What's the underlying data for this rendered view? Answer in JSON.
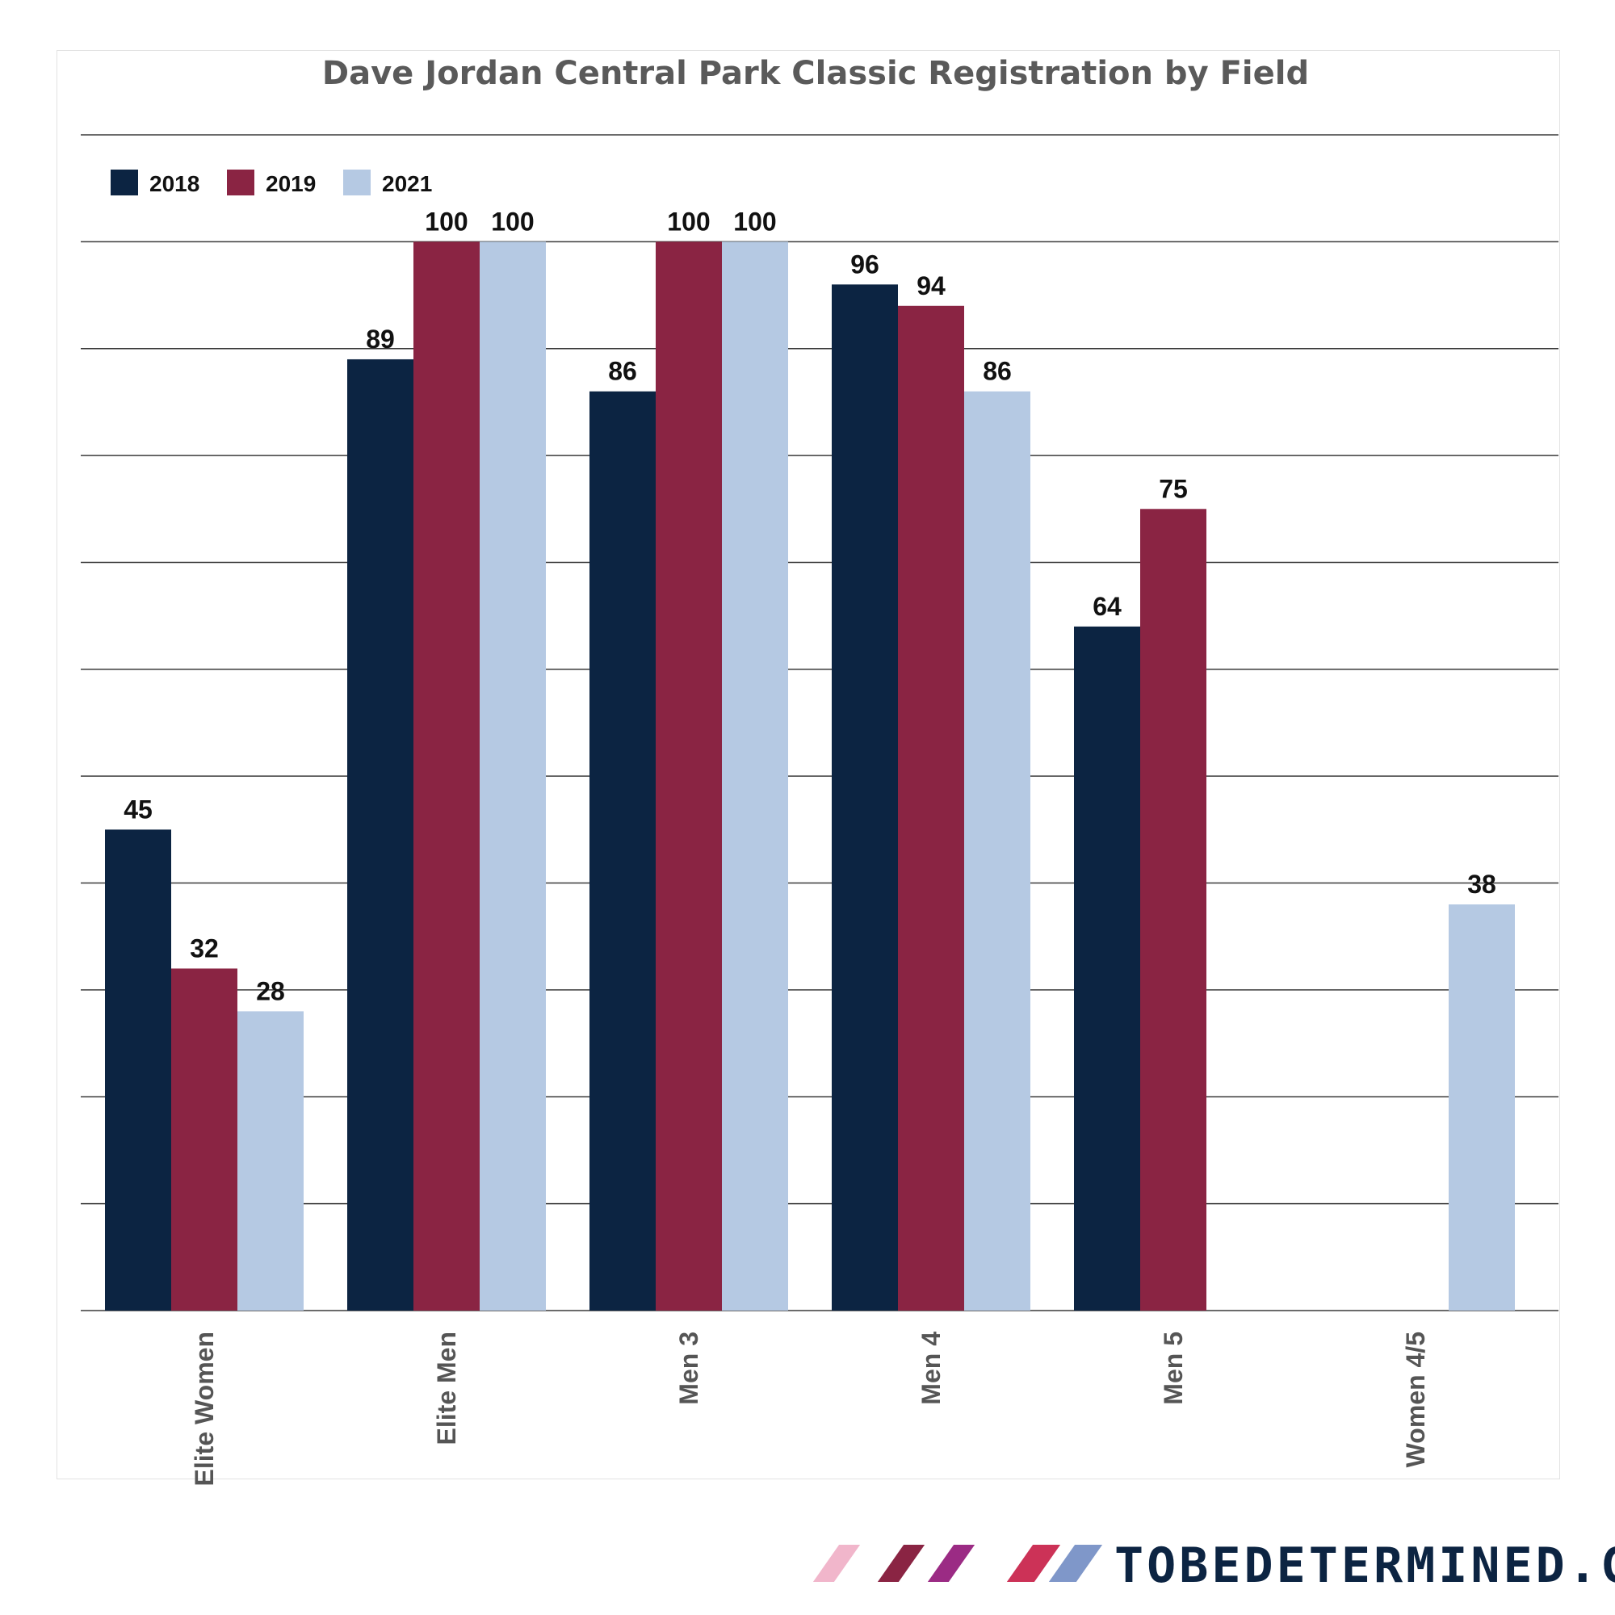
{
  "chart_data": {
    "type": "bar",
    "title": "Dave Jordan Central Park Classic Registration by Field",
    "categories": [
      "Elite Women",
      "Elite Men",
      "Men 3",
      "Men 4",
      "Men 5",
      "Women 4/5"
    ],
    "series": [
      {
        "name": "2018",
        "color": "#0c2442",
        "values": [
          45,
          89,
          86,
          96,
          64,
          null
        ]
      },
      {
        "name": "2019",
        "color": "#8a2443",
        "values": [
          32,
          100,
          100,
          94,
          75,
          null
        ]
      },
      {
        "name": "2021",
        "color": "#b5c9e3",
        "values": [
          28,
          100,
          100,
          86,
          null,
          38
        ]
      }
    ],
    "ylim": [
      0,
      110
    ],
    "grid": true,
    "legend": "top-left",
    "xlabel": "",
    "ylabel": ""
  },
  "brand": {
    "text": "TOBEDETERMINED.CC",
    "slash_colors": [
      "#f1b6cb",
      "#8a2443",
      "#9b2b84",
      "#cc3257",
      "#7f97c9"
    ]
  }
}
